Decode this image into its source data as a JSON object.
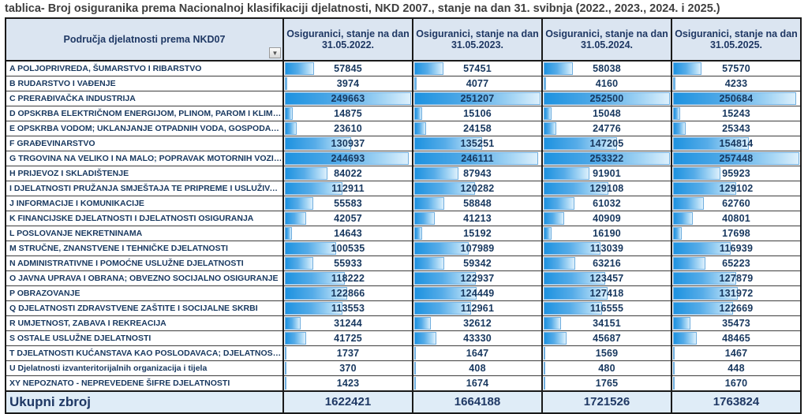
{
  "title": "tablica- Broj osiguranika prema Nacionalnoj klasifikaciji djelatnosti, NKD 2007., stanje na dan 31. svibnja (2022., 2023., 2024. i 2025.)",
  "table": {
    "category_header": "Područja djelatnosti prema NKD07",
    "filter_icon": "▼",
    "column_header_top": "Osiguranici, stanje na dan",
    "column_dates": [
      "31.05.2022.",
      "31.05.2023.",
      "31.05.2024.",
      "31.05.2025."
    ]
  },
  "colors": {
    "header_bg": "#dbe5f1",
    "total_bg": "#dfecf7",
    "text_navy": "#1f3864",
    "bar_fill_start": "#1d92e0",
    "bar_fill_end": "#ddf0fc",
    "bar_border": "#70aede"
  },
  "chart_data": {
    "type": "table",
    "title": "tablica- Broj osiguranika prema Nacionalnoj klasifikaciji djelatnosti, NKD 2007., stanje na dan 31. svibnja (2022., 2023., 2024. i 2025.)",
    "categories": [
      "A POLJOPRIVREDA, ŠUMARSTVO I RIBARSTVO",
      "B RUDARSTVO I VAĐENJE",
      "C PRERAĐIVAČKA INDUSTRIJA",
      "D OPSKRBA ELEKTRIČNOM ENERGIJOM, PLINOM, PAROM I KLIMATIZACIJA",
      "E OPSKRBA VODOM; UKLANJANJE OTPADNIH VODA, GOSPODARENJE OTPADOM",
      "F GRAĐEVINARSTVO",
      "G TRGOVINA NA VELIKO I NA MALO; POPRAVAK MOTORNIH VOZILA I MOTOCIKALA",
      "H PRIJEVOZ I SKLADIŠTENJE",
      "I DJELATNOSTI PRUŽANJA SMJEŠTAJA TE PRIPREME I USLUŽIVANJA HRANE",
      "J INFORMACIJE I KOMUNIKACIJE",
      "K FINANCIJSKE DJELATNOSTI I DJELATNOSTI OSIGURANJA",
      "L POSLOVANJE NEKRETNINAMA",
      "M STRUČNE, ZNANSTVENE I TEHNIČKE DJELATNOSTI",
      "N ADMINISTRATIVNE I POMOĆNE USLUŽNE DJELATNOSTI",
      "O JAVNA UPRAVA I OBRANA; OBVEZNO SOCIJALNO OSIGURANJE",
      "P OBRAZOVANJE",
      "Q DJELATNOSTI ZDRAVSTVENE ZAŠTITE I SOCIJALNE SKRBI",
      "R UMJETNOST, ZABAVA I REKREACIJA",
      "S OSTALE USLUŽNE DJELATNOSTI",
      "T DJELATNOSTI KUĆANSTAVA KAO POSLODAVACA; DJELATNOSTI KUĆANSTAVA...",
      "U Djelatnosti izvanteritorijalnih organizacija i tijela",
      "XY NEPOZNATO - NEPREVEDENE ŠIFRE DJELATNOSTI"
    ],
    "series": [
      {
        "name": "Osiguranici, stanje na dan 31.05.2022.",
        "values": [
          57845,
          3974,
          249663,
          14875,
          23610,
          130937,
          244693,
          84022,
          112911,
          55583,
          42057,
          14643,
          100535,
          55933,
          118222,
          122866,
          113553,
          31244,
          41725,
          1737,
          370,
          1423
        ]
      },
      {
        "name": "Osiguranici, stanje na dan 31.05.2023.",
        "values": [
          57451,
          4077,
          251207,
          15106,
          24158,
          135251,
          246111,
          87943,
          120282,
          58848,
          41213,
          15192,
          107989,
          59342,
          122937,
          124449,
          112961,
          32612,
          43330,
          1647,
          408,
          1674
        ]
      },
      {
        "name": "Osiguranici, stanje na dan 31.05.2024.",
        "values": [
          58038,
          4160,
          252500,
          15048,
          24776,
          147205,
          253322,
          91901,
          129108,
          61032,
          40909,
          16190,
          113039,
          63216,
          123457,
          127418,
          116555,
          34151,
          45687,
          1569,
          480,
          1765
        ]
      },
      {
        "name": "Osiguranici, stanje na dan 31.05.2025.",
        "values": [
          57570,
          4233,
          250684,
          15243,
          25343,
          154814,
          257448,
          95923,
          129102,
          62760,
          40801,
          17698,
          116939,
          65223,
          127879,
          131972,
          122669,
          35473,
          48465,
          1467,
          448,
          1670
        ]
      }
    ],
    "totals": {
      "label": "Ukupni zbroj",
      "values": [
        1622421,
        1664188,
        1721526,
        1763824
      ]
    },
    "layout_hints": {
      "data_bars": "in-cell gradient blue data bars, width proportional to column maximum",
      "values_format": "no thousands separator"
    }
  }
}
